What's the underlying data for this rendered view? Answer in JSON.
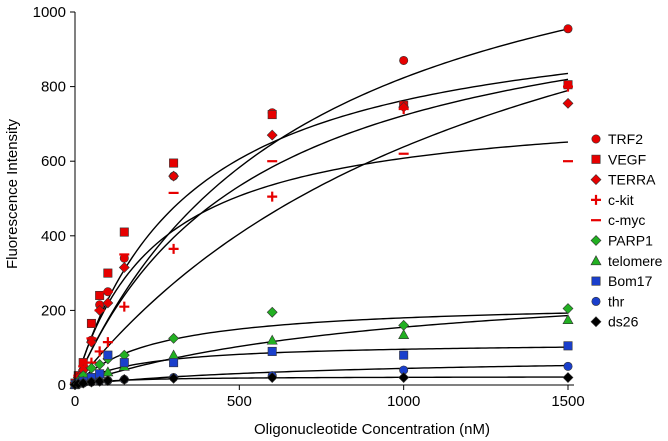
{
  "chart_data": {
    "type": "scatter",
    "title": "",
    "xlabel": "Oligonucleotide Concentration (nM)",
    "ylabel": "Fluorescence Intensity",
    "xlim": [
      0,
      1500
    ],
    "ylim": [
      0,
      1000
    ],
    "xticks": [
      0,
      500,
      1000,
      1500
    ],
    "yticks": [
      0,
      200,
      400,
      600,
      800,
      1000
    ],
    "legend_position": "right",
    "series": [
      {
        "name": "TRF2",
        "marker": "circle",
        "color": "#e60000",
        "x": [
          0,
          10,
          25,
          50,
          75,
          100,
          150,
          300,
          600,
          1000,
          1500
        ],
        "y": [
          5,
          20,
          40,
          120,
          215,
          250,
          340,
          560,
          730,
          870,
          955
        ],
        "fit": {
          "bmax": 1400,
          "kd": 700
        }
      },
      {
        "name": "VEGF",
        "marker": "square",
        "color": "#e60000",
        "x": [
          0,
          10,
          25,
          50,
          75,
          100,
          150,
          300,
          600,
          1000,
          1500
        ],
        "y": [
          5,
          25,
          60,
          165,
          240,
          300,
          410,
          595,
          725,
          750,
          805
        ],
        "fit": {
          "bmax": 1030,
          "kd": 350
        }
      },
      {
        "name": "TERRA",
        "marker": "diamond",
        "color": "#e60000",
        "x": [
          0,
          10,
          25,
          50,
          75,
          100,
          150,
          300,
          600,
          1000,
          1500
        ],
        "y": [
          5,
          20,
          40,
          115,
          200,
          220,
          315,
          560,
          670,
          745,
          755
        ],
        "fit": {
          "bmax": 1120,
          "kd": 550
        }
      },
      {
        "name": "c-kit",
        "marker": "plus",
        "color": "#e60000",
        "x": [
          0,
          10,
          25,
          50,
          75,
          100,
          150,
          300,
          600,
          1000,
          1500
        ],
        "y": [
          3,
          10,
          25,
          60,
          90,
          115,
          210,
          365,
          505,
          740,
          800
        ],
        "fit": {
          "bmax": 1500,
          "kd": 1350
        }
      },
      {
        "name": "c-myc",
        "marker": "dash",
        "color": "#e60000",
        "x": [
          0,
          10,
          25,
          50,
          75,
          100,
          150,
          300,
          600,
          1000,
          1500
        ],
        "y": [
          5,
          25,
          50,
          125,
          200,
          250,
          350,
          515,
          600,
          620,
          600
        ],
        "fit": {
          "bmax": 760,
          "kd": 250
        }
      },
      {
        "name": "PARP1",
        "marker": "diamond",
        "color": "#22b022",
        "x": [
          0,
          10,
          25,
          50,
          75,
          100,
          150,
          300,
          600,
          1000,
          1500
        ],
        "y": [
          2,
          10,
          25,
          45,
          55,
          70,
          80,
          125,
          195,
          160,
          205
        ],
        "fit": {
          "bmax": 225,
          "kd": 250
        }
      },
      {
        "name": "telomere",
        "marker": "triangle",
        "color": "#22b022",
        "x": [
          0,
          10,
          25,
          50,
          75,
          100,
          150,
          300,
          600,
          1000,
          1500
        ],
        "y": [
          1,
          5,
          10,
          20,
          30,
          35,
          50,
          80,
          120,
          135,
          175
        ],
        "fit": {
          "bmax": 310,
          "kd": 1000
        }
      },
      {
        "name": "Bom17",
        "marker": "square",
        "color": "#1a3fcc",
        "x": [
          0,
          10,
          25,
          50,
          75,
          100,
          150,
          300,
          600,
          1000,
          1500
        ],
        "y": [
          1,
          5,
          10,
          20,
          30,
          80,
          60,
          60,
          90,
          80,
          105
        ],
        "fit": {
          "bmax": 115,
          "kd": 200
        }
      },
      {
        "name": "thr",
        "marker": "circle",
        "color": "#1a3fcc",
        "x": [
          0,
          10,
          25,
          50,
          75,
          100,
          150,
          300,
          600,
          1000,
          1500
        ],
        "y": [
          1,
          3,
          5,
          8,
          10,
          12,
          15,
          20,
          25,
          40,
          50
        ],
        "fit": {
          "bmax": 80,
          "kd": 800
        }
      },
      {
        "name": "ds26",
        "marker": "diamond",
        "color": "#000000",
        "x": [
          0,
          10,
          25,
          50,
          75,
          100,
          150,
          300,
          600,
          1000,
          1500
        ],
        "y": [
          1,
          3,
          5,
          8,
          10,
          12,
          15,
          18,
          20,
          20,
          20
        ],
        "fit": {
          "bmax": 23,
          "kd": 120
        }
      }
    ]
  }
}
